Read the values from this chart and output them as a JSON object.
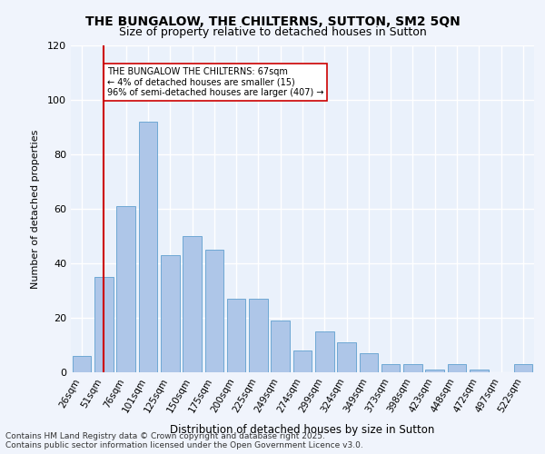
{
  "title1": "THE BUNGALOW, THE CHILTERNS, SUTTON, SM2 5QN",
  "title2": "Size of property relative to detached houses in Sutton",
  "xlabel": "Distribution of detached houses by size in Sutton",
  "ylabel": "Number of detached properties",
  "categories": [
    "26sqm",
    "51sqm",
    "76sqm",
    "101sqm",
    "125sqm",
    "150sqm",
    "175sqm",
    "200sqm",
    "225sqm",
    "249sqm",
    "274sqm",
    "299sqm",
    "324sqm",
    "349sqm",
    "373sqm",
    "398sqm",
    "423sqm",
    "448sqm",
    "472sqm",
    "497sqm",
    "522sqm"
  ],
  "values": [
    6,
    35,
    61,
    92,
    43,
    50,
    45,
    27,
    27,
    19,
    8,
    15,
    11,
    7,
    3,
    3,
    1,
    3,
    1,
    0,
    3
  ],
  "bar_color": "#aec6e8",
  "bar_edge_color": "#6fa8d4",
  "vline_x": 1,
  "vline_color": "#cc0000",
  "annotation_text": "THE BUNGALOW THE CHILTERNS: 67sqm\n← 4% of detached houses are smaller (15)\n96% of semi-detached houses are larger (407) →",
  "annotation_box_color": "#ffffff",
  "annotation_box_edge": "#cc0000",
  "ylim": [
    0,
    120
  ],
  "yticks": [
    0,
    20,
    40,
    60,
    80,
    100,
    120
  ],
  "bg_color": "#eaf1fb",
  "grid_color": "#ffffff",
  "footnote": "Contains HM Land Registry data © Crown copyright and database right 2025.\nContains public sector information licensed under the Open Government Licence v3.0."
}
